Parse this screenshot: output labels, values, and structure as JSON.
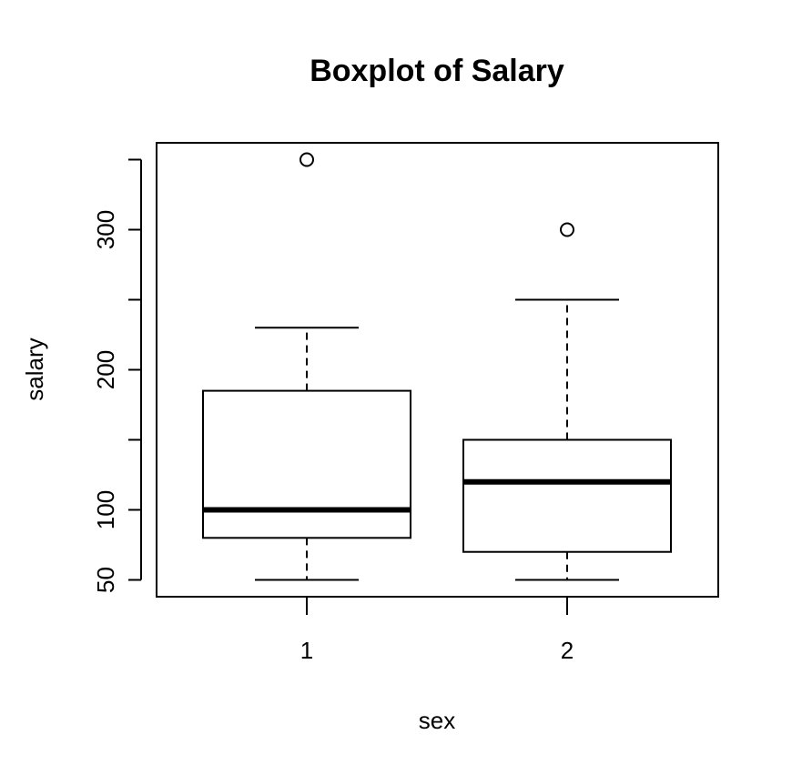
{
  "chart_data": {
    "type": "box",
    "title": "Boxplot of Salary",
    "xlabel": "sex",
    "ylabel": "salary",
    "categories": [
      "1",
      "2"
    ],
    "boxes": [
      {
        "whisker_low": 50,
        "q1": 80,
        "median": 100,
        "q3": 185,
        "whisker_high": 230,
        "outliers": [
          350
        ]
      },
      {
        "whisker_low": 50,
        "q1": 70,
        "median": 120,
        "q3": 150,
        "whisker_high": 250,
        "outliers": [
          300
        ]
      }
    ],
    "color": "#000000",
    "ylim": [
      38,
      362
    ],
    "yticks": [
      50,
      100,
      {
        "value": 150,
        "label": null
      },
      200,
      {
        "value": 250,
        "label": null
      },
      300,
      {
        "value": 350,
        "label": null
      }
    ]
  }
}
